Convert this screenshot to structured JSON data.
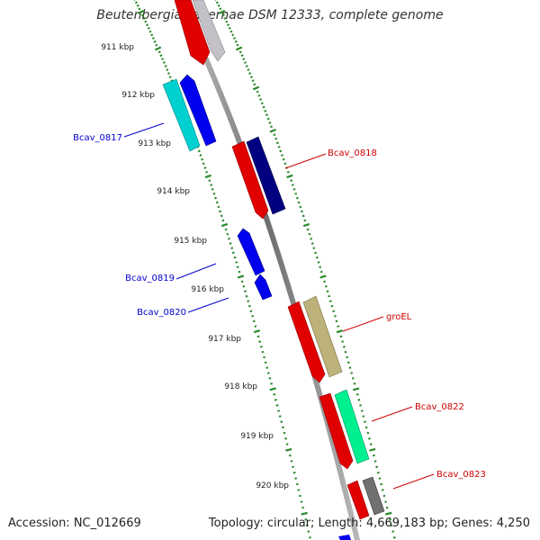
{
  "title": "Beutenbergia cavernae DSM 12333, complete genome",
  "footer": {
    "accession": "Accession: NC_012669",
    "summary": "Topology: circular; Length: 4,669,183 bp; Genes: 4,250"
  },
  "kbp_ticks": [
    {
      "kb": 911,
      "label": "911 kbp"
    },
    {
      "kb": 912,
      "label": "912 kbp"
    },
    {
      "kb": 913,
      "label": "913 kbp"
    },
    {
      "kb": 914,
      "label": "914 kbp"
    },
    {
      "kb": 915,
      "label": "915 kbp"
    },
    {
      "kb": 916,
      "label": "916 kbp"
    },
    {
      "kb": 917,
      "label": "917 kbp"
    },
    {
      "kb": 918,
      "label": "918 kbp"
    },
    {
      "kb": 919,
      "label": "919 kbp"
    },
    {
      "kb": 920,
      "label": "920 kbp"
    }
  ],
  "gene_labels": [
    {
      "name": "Bcav_0817",
      "color": "#0000cc"
    },
    {
      "name": "Bcav_0818",
      "color": "#cc0000"
    },
    {
      "name": "Bcav_0819",
      "color": "#0000cc"
    },
    {
      "name": "Bcav_0820",
      "color": "#0000cc"
    },
    {
      "name": "groEL",
      "color": "#cc0000"
    },
    {
      "name": "Bcav_0822",
      "color": "#cc0000"
    },
    {
      "name": "Bcav_0823",
      "color": "#cc0000"
    }
  ],
  "colors": {
    "backbone": "#8c8c8c",
    "tick": "#2a8a2a",
    "forward": "#dd0000",
    "reverse": "#0000ee"
  }
}
